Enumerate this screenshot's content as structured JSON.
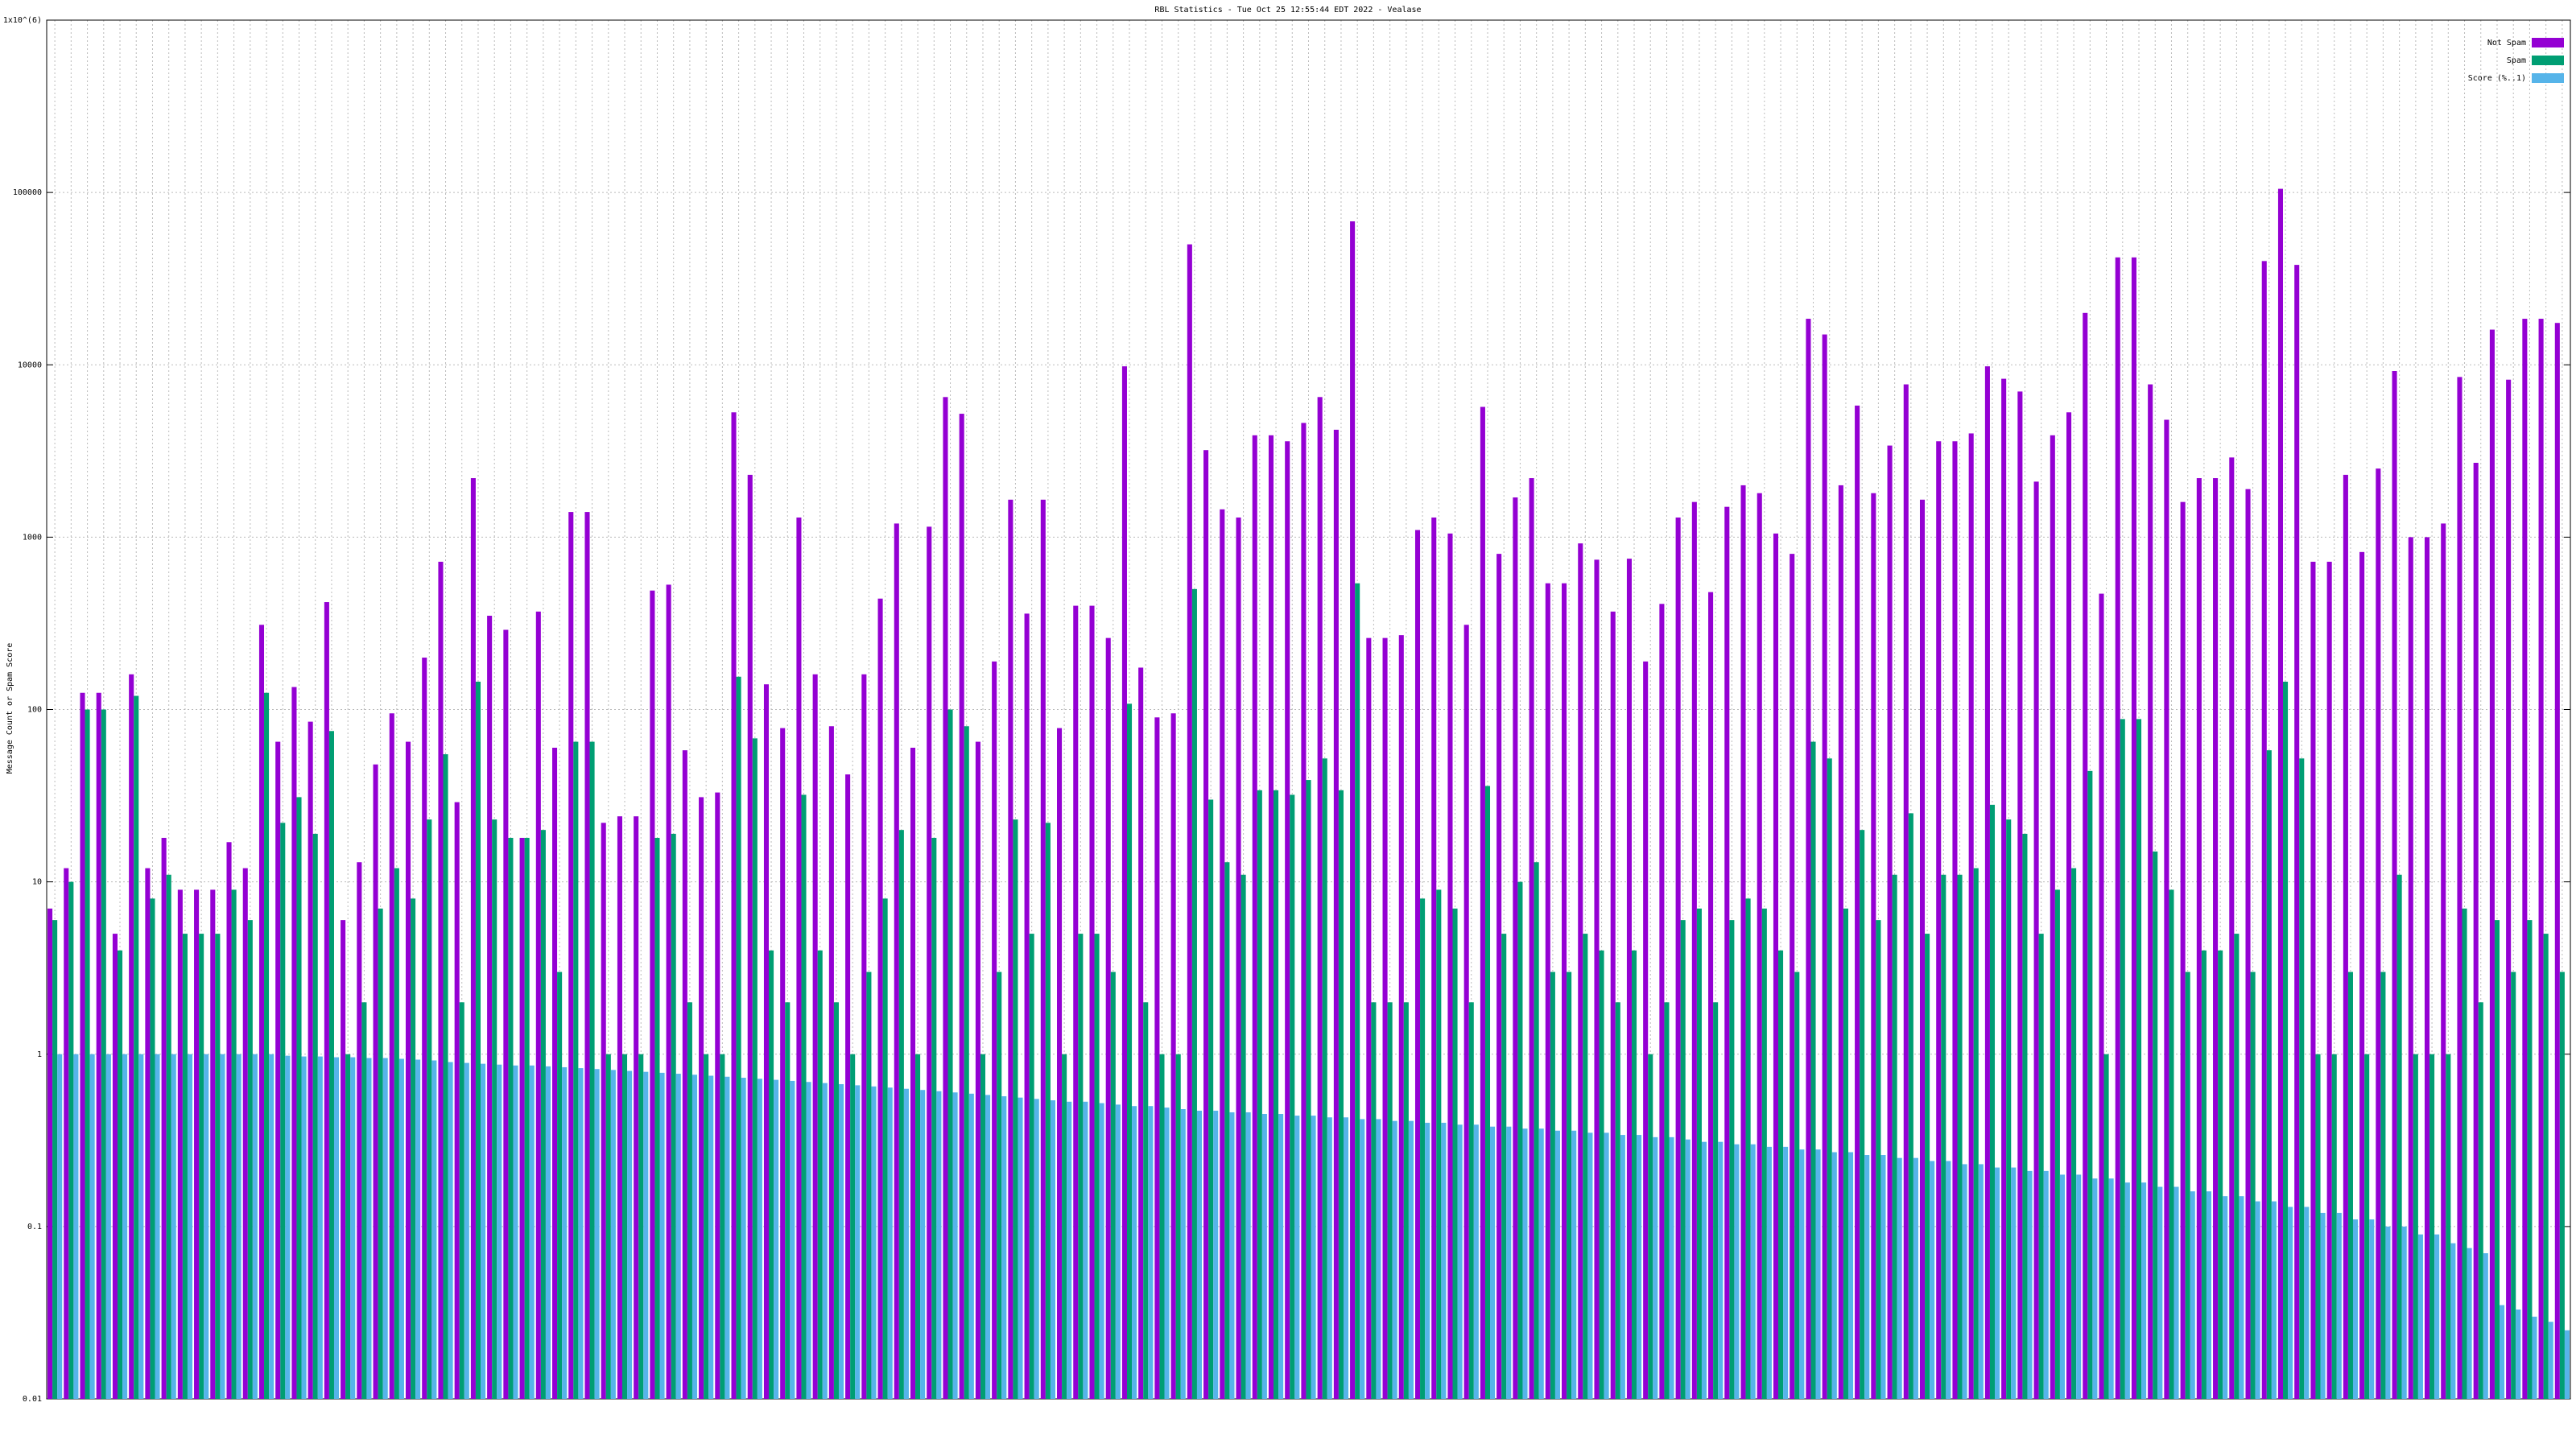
{
  "chart_data": {
    "type": "bar",
    "title": "RBL Statistics - Tue Oct 25 12:55:44 EDT 2022 - Vealase",
    "y_label": "Message Count or Spam Score",
    "log_scale": true,
    "grid": true,
    "legend": "top-right",
    "ylim": [
      0.01,
      1000000
    ],
    "yticks": [
      0.01,
      0.1,
      1,
      10,
      100,
      1000,
      10000,
      100000,
      {
        "value": 1000000,
        "label": "1x10^(6)"
      }
    ],
    "categories": [
      null,
      null,
      null,
      null,
      null,
      null,
      null,
      null,
      null,
      null,
      null,
      null,
      null,
      null,
      null,
      null,
      null,
      null,
      null,
      null,
      null,
      null,
      null,
      null,
      null,
      null,
      null,
      null,
      null,
      null,
      null,
      null,
      null,
      null,
      null,
      null,
      null,
      null,
      null,
      null,
      null,
      null,
      null,
      null,
      null,
      null,
      null,
      null,
      null,
      null,
      null,
      null,
      null,
      null,
      null,
      null,
      null,
      null,
      null,
      null,
      null,
      null,
      null,
      null,
      null,
      null,
      null,
      null,
      null,
      null,
      null,
      null,
      null,
      null,
      null,
      null,
      null,
      null,
      null,
      null,
      null,
      null,
      null,
      null,
      null,
      null,
      null,
      null,
      null,
      null,
      null,
      null,
      null,
      null,
      null,
      null,
      null,
      null,
      null,
      null,
      null,
      null,
      null,
      null,
      null,
      null,
      null,
      null,
      null,
      null,
      null,
      null,
      null,
      null,
      null,
      null,
      null,
      null,
      null,
      null,
      null,
      null,
      null,
      null,
      null,
      null,
      null,
      null,
      null,
      null,
      null,
      null,
      null,
      null,
      null,
      null,
      null,
      null,
      null,
      null,
      null,
      null,
      null,
      null,
      null,
      null,
      null,
      null,
      null,
      null,
      null,
      null,
      null,
      null,
      null
    ],
    "series": [
      {
        "name": "Not Spam",
        "color": "#9400d3",
        "values": [
          7,
          12,
          125,
          125,
          5,
          160,
          12,
          18,
          9,
          9,
          9,
          17,
          12,
          310,
          65,
          135,
          85,
          420,
          6,
          13,
          48,
          95,
          65,
          200,
          720,
          29,
          2200,
          350,
          290,
          18,
          370,
          60,
          1400,
          1400,
          22,
          24,
          24,
          490,
          530,
          58,
          31,
          33,
          5300,
          2300,
          140,
          78,
          1300,
          160,
          80,
          42,
          160,
          440,
          1200,
          60,
          1150,
          6500,
          5200,
          65,
          190,
          1650,
          360,
          1650,
          78,
          400,
          400,
          260,
          9800,
          175,
          90,
          95,
          50000,
          3200,
          1450,
          1300,
          3900,
          3900,
          3600,
          4600,
          6500,
          4200,
          68000,
          260,
          260,
          270,
          1100,
          1300,
          1050,
          310,
          5700,
          800,
          1700,
          2200,
          540,
          540,
          920,
          740,
          370,
          750,
          190,
          410,
          1300,
          1600,
          480,
          1500,
          2000,
          1800,
          1050,
          800,
          18500,
          15000,
          2000,
          5800,
          1800,
          3400,
          7700,
          1650,
          3600,
          3600,
          4000,
          9800,
          8300,
          7000,
          2100,
          3900,
          5300,
          20000,
          470,
          42000,
          42000,
          7700,
          4800,
          1600,
          2200,
          2200,
          2900,
          1900,
          40000,
          105000,
          38000,
          720,
          720,
          2300,
          820,
          2500,
          9200,
          1000,
          1000,
          1200,
          8500,
          2700,
          16000,
          8200,
          18500,
          18500,
          17500
        ]
      },
      {
        "name": "Spam",
        "color": "#009e73",
        "values": [
          6,
          10,
          100,
          100,
          4,
          120,
          8,
          11,
          5,
          5,
          5,
          9,
          6,
          125,
          22,
          31,
          19,
          75,
          1,
          2,
          7,
          12,
          8,
          23,
          55,
          2,
          145,
          23,
          18,
          18,
          20,
          3,
          65,
          65,
          1,
          1,
          1,
          18,
          19,
          2,
          1,
          1,
          155,
          68,
          4,
          2,
          32,
          4,
          2,
          1,
          3,
          8,
          20,
          1,
          18,
          100,
          80,
          1,
          3,
          23,
          5,
          22,
          1,
          5,
          5,
          3,
          108,
          2,
          1,
          1,
          500,
          30,
          13,
          11,
          34,
          34,
          32,
          39,
          52,
          34,
          540,
          2,
          2,
          2,
          8,
          9,
          7,
          2,
          36,
          5,
          10,
          13,
          3,
          3,
          5,
          4,
          2,
          4,
          1,
          2,
          6,
          7,
          2,
          6,
          8,
          7,
          4,
          3,
          65,
          52,
          7,
          20,
          6,
          11,
          25,
          5,
          11,
          11,
          12,
          28,
          23,
          19,
          5,
          9,
          12,
          44,
          1,
          88,
          88,
          15,
          9,
          3,
          4,
          4,
          5,
          3,
          58,
          145,
          52,
          1,
          1,
          3,
          1,
          3,
          11,
          1,
          1,
          1,
          7,
          2,
          6,
          3,
          6,
          5,
          3
        ]
      },
      {
        "name": "Score (%..1)",
        "color": "#56b4e9",
        "values": [
          1,
          1,
          1,
          1,
          1,
          1,
          1,
          1,
          1,
          1,
          1,
          1,
          1,
          1,
          0.98,
          0.97,
          0.97,
          0.96,
          0.96,
          0.95,
          0.95,
          0.94,
          0.93,
          0.92,
          0.9,
          0.89,
          0.88,
          0.87,
          0.86,
          0.86,
          0.85,
          0.84,
          0.83,
          0.82,
          0.81,
          0.8,
          0.79,
          0.78,
          0.77,
          0.76,
          0.75,
          0.74,
          0.73,
          0.72,
          0.71,
          0.7,
          0.69,
          0.68,
          0.67,
          0.66,
          0.65,
          0.64,
          0.63,
          0.62,
          0.61,
          0.6,
          0.59,
          0.58,
          0.57,
          0.56,
          0.55,
          0.54,
          0.53,
          0.53,
          0.52,
          0.51,
          0.5,
          0.5,
          0.49,
          0.48,
          0.47,
          0.47,
          0.46,
          0.46,
          0.45,
          0.45,
          0.44,
          0.44,
          0.43,
          0.43,
          0.42,
          0.42,
          0.41,
          0.41,
          0.4,
          0.4,
          0.39,
          0.39,
          0.38,
          0.38,
          0.37,
          0.37,
          0.36,
          0.36,
          0.35,
          0.35,
          0.34,
          0.34,
          0.33,
          0.33,
          0.32,
          0.31,
          0.31,
          0.3,
          0.3,
          0.29,
          0.29,
          0.28,
          0.28,
          0.27,
          0.27,
          0.26,
          0.26,
          0.25,
          0.25,
          0.24,
          0.24,
          0.23,
          0.23,
          0.22,
          0.22,
          0.21,
          0.21,
          0.2,
          0.2,
          0.19,
          0.19,
          0.18,
          0.18,
          0.17,
          0.17,
          0.16,
          0.16,
          0.15,
          0.15,
          0.14,
          0.14,
          0.13,
          0.13,
          0.12,
          0.12,
          0.11,
          0.11,
          0.1,
          0.1,
          0.09,
          0.09,
          0.08,
          0.075,
          0.07,
          0.035,
          0.033,
          0.03,
          0.028,
          0.025
        ]
      }
    ]
  }
}
